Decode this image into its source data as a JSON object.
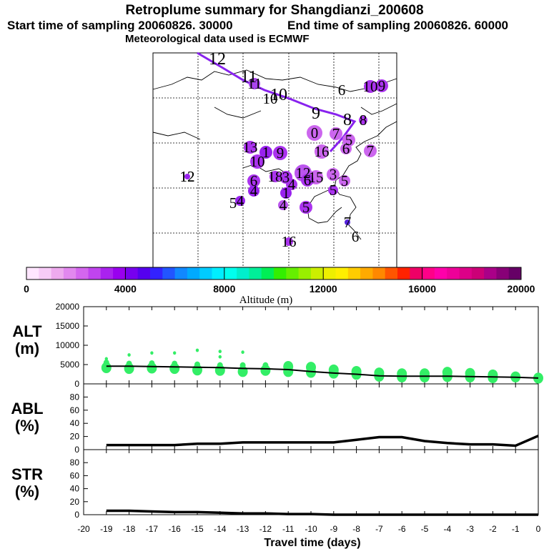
{
  "header": {
    "title": "Retroplume summary for Shangdianzi_200608",
    "start_label": "Start time of sampling 20060826. 30000",
    "end_label": "End time of sampling 20060826. 60000",
    "met_label": "Meteorological data used is ECMWF"
  },
  "map": {
    "trajectory_labels": [
      "12",
      "11",
      "10",
      "9",
      "8"
    ],
    "cluster_labels": [
      {
        "text": "12",
        "color": "#9922ee"
      },
      {
        "text": "11",
        "color": "#aa44ee"
      },
      {
        "text": "10",
        "color": "#aa44ee"
      },
      {
        "text": "6",
        "color": "#cc66ee"
      },
      {
        "text": "10",
        "color": "#aa33ee"
      },
      {
        "text": "9",
        "color": "#aa33ee"
      },
      {
        "text": "8",
        "color": "#aa33ee"
      },
      {
        "text": "0",
        "color": "#cc66ee"
      },
      {
        "text": "7",
        "color": "#cc66ee"
      },
      {
        "text": "5",
        "color": "#cc66ee"
      },
      {
        "text": "6",
        "color": "#cc66ee"
      },
      {
        "text": "7",
        "color": "#cc66ee"
      },
      {
        "text": "13",
        "color": "#aa33ee"
      },
      {
        "text": "10",
        "color": "#aa33ee"
      },
      {
        "text": "9",
        "color": "#aa33ee"
      },
      {
        "text": "1",
        "color": "#9922ee"
      },
      {
        "text": "16",
        "color": "#cc66ee"
      },
      {
        "text": "12",
        "color": "#8822ee"
      },
      {
        "text": "6",
        "color": "#aa33ee"
      },
      {
        "text": "4",
        "color": "#9922ee"
      },
      {
        "text": "18",
        "color": "#aa33ee"
      },
      {
        "text": "3",
        "color": "#aa33ee"
      },
      {
        "text": "12",
        "color": "#bb55ee"
      },
      {
        "text": "15",
        "color": "#cc66ee"
      },
      {
        "text": "3",
        "color": "#cc66ee"
      },
      {
        "text": "5",
        "color": "#cc66ee"
      },
      {
        "text": "6",
        "color": "#aa33ee"
      },
      {
        "text": "4",
        "color": "#aa33ee"
      },
      {
        "text": "5",
        "color": "#aa33ee"
      },
      {
        "text": "1",
        "color": "#9922ee"
      },
      {
        "text": "4",
        "color": "#bb55ee"
      },
      {
        "text": "5",
        "color": "#aa33ee"
      },
      {
        "text": "4",
        "color": "#9922ee"
      },
      {
        "text": "5",
        "color": "#aa33ee"
      },
      {
        "text": "7",
        "color": "#5522dd"
      },
      {
        "text": "6",
        "color": "#5522dd"
      },
      {
        "text": "16",
        "color": "#aa33ee"
      }
    ],
    "trajectory_color": "#8822ee"
  },
  "colorbar": {
    "ticks": [
      "0",
      "4000",
      "8000",
      "12000",
      "16000",
      "20000"
    ],
    "label": "Altitude (m)",
    "colors": [
      "#ffe6ff",
      "#f7ccf7",
      "#eeaaee",
      "#e288ee",
      "#d466ee",
      "#c044ee",
      "#aa22ee",
      "#9900ee",
      "#7700ee",
      "#5500ee",
      "#3322ff",
      "#2255ff",
      "#1188ff",
      "#00aaff",
      "#00ccff",
      "#00eeff",
      "#00ffee",
      "#00eecc",
      "#00ee99",
      "#00ee55",
      "#33ee00",
      "#66ee00",
      "#99ee00",
      "#ccee00",
      "#eeee00",
      "#ffee00",
      "#ffcc00",
      "#ffaa00",
      "#ff8800",
      "#ff5500",
      "#ff2200",
      "#ee0066",
      "#ff0088",
      "#ff00aa",
      "#ee0099",
      "#dd0088",
      "#cc0077",
      "#aa0088",
      "#880077",
      "#660066"
    ]
  },
  "chart_data": [
    {
      "type": "scatter",
      "ylabel": "ALT\n(m)",
      "ylabel_lines": [
        "ALT",
        "(m)"
      ],
      "xlabel": "Travel time (days)",
      "xlim": [
        -20,
        0
      ],
      "ylim": [
        0,
        20000
      ],
      "yticks": [
        "0",
        "5000",
        "10000",
        "15000",
        "20000"
      ],
      "xticks": [
        "-20",
        "-19",
        "-18",
        "-17",
        "-16",
        "-15",
        "-14",
        "-13",
        "-12",
        "-11",
        "-10",
        "-9",
        "-8",
        "-7",
        "-6",
        "-5",
        "-4",
        "-3",
        "-2",
        "-1",
        "0"
      ],
      "median_line": {
        "x": [
          -19,
          -18,
          -17,
          -16,
          -15,
          -14,
          -13,
          -12,
          -11,
          -10,
          -9,
          -8,
          -7,
          -6,
          -5,
          -4,
          -3,
          -2,
          -1,
          0
        ],
        "y": [
          4600,
          4600,
          4500,
          4400,
          4300,
          4200,
          4000,
          3900,
          3700,
          3200,
          2800,
          2500,
          2100,
          2000,
          2000,
          2000,
          1900,
          1800,
          1700,
          1500
        ]
      },
      "points": [
        {
          "x": -19,
          "y": 4200
        },
        {
          "x": -19,
          "y": 5500
        },
        {
          "x": -19,
          "y": 6500
        },
        {
          "x": -18,
          "y": 4000
        },
        {
          "x": -18,
          "y": 5200
        },
        {
          "x": -18,
          "y": 7500
        },
        {
          "x": -17,
          "y": 4100
        },
        {
          "x": -17,
          "y": 5300
        },
        {
          "x": -17,
          "y": 8000
        },
        {
          "x": -16,
          "y": 4000
        },
        {
          "x": -16,
          "y": 5200
        },
        {
          "x": -16,
          "y": 8000
        },
        {
          "x": -15,
          "y": 3600
        },
        {
          "x": -15,
          "y": 5000
        },
        {
          "x": -15,
          "y": 8700
        },
        {
          "x": -14,
          "y": 3500
        },
        {
          "x": -14,
          "y": 4800
        },
        {
          "x": -14,
          "y": 7000
        },
        {
          "x": -14,
          "y": 8400
        },
        {
          "x": -13,
          "y": 3200
        },
        {
          "x": -13,
          "y": 4800
        },
        {
          "x": -13,
          "y": 8200
        },
        {
          "x": -12,
          "y": 3500
        },
        {
          "x": -12,
          "y": 4800
        },
        {
          "x": -11,
          "y": 3200
        },
        {
          "x": -11,
          "y": 4500
        },
        {
          "x": -10,
          "y": 3000
        },
        {
          "x": -10,
          "y": 4300
        },
        {
          "x": -9,
          "y": 2800
        },
        {
          "x": -9,
          "y": 3600
        },
        {
          "x": -8,
          "y": 2500
        },
        {
          "x": -8,
          "y": 3200
        },
        {
          "x": -7,
          "y": 2000
        },
        {
          "x": -7,
          "y": 2800
        },
        {
          "x": -6,
          "y": 1800
        },
        {
          "x": -6,
          "y": 2600
        },
        {
          "x": -5,
          "y": 1800
        },
        {
          "x": -5,
          "y": 2600
        },
        {
          "x": -4,
          "y": 1900
        },
        {
          "x": -4,
          "y": 3000
        },
        {
          "x": -3,
          "y": 1800
        },
        {
          "x": -3,
          "y": 2700
        },
        {
          "x": -2,
          "y": 1600
        },
        {
          "x": -2,
          "y": 2300
        },
        {
          "x": -1,
          "y": 1800
        },
        {
          "x": 0,
          "y": 1500
        }
      ],
      "point_color": "#33ee66"
    },
    {
      "type": "line",
      "ylabel_lines": [
        "ABL",
        "(%)"
      ],
      "xlim": [
        -20,
        0
      ],
      "ylim": [
        0,
        100
      ],
      "yticks": [
        "0",
        "20",
        "40",
        "60",
        "80"
      ],
      "x": [
        -19,
        -18,
        -17,
        -16,
        -15,
        -14,
        -13,
        -12,
        -11,
        -10,
        -9,
        -8,
        -7,
        -6,
        -5,
        -4,
        -3,
        -2,
        -1,
        0
      ],
      "y": [
        7,
        7,
        7,
        7,
        9,
        9,
        11,
        11,
        11,
        11,
        11,
        15,
        19,
        19,
        13,
        10,
        8,
        8,
        6,
        21
      ]
    },
    {
      "type": "line",
      "ylabel_lines": [
        "STR",
        "(%)"
      ],
      "xlim": [
        -20,
        0
      ],
      "ylim": [
        0,
        100
      ],
      "yticks": [
        "0",
        "20",
        "40",
        "60",
        "80"
      ],
      "x": [
        -19,
        -18,
        -17,
        -16,
        -15,
        -14,
        -13,
        -12,
        -11,
        -10,
        -9,
        -8,
        -7,
        -6,
        -5,
        -4,
        -3,
        -2,
        -1,
        0
      ],
      "y": [
        6,
        6,
        5,
        4,
        4,
        3,
        2,
        2,
        1,
        1,
        0,
        0,
        0,
        0,
        0,
        0,
        0,
        0,
        0,
        0
      ]
    }
  ]
}
